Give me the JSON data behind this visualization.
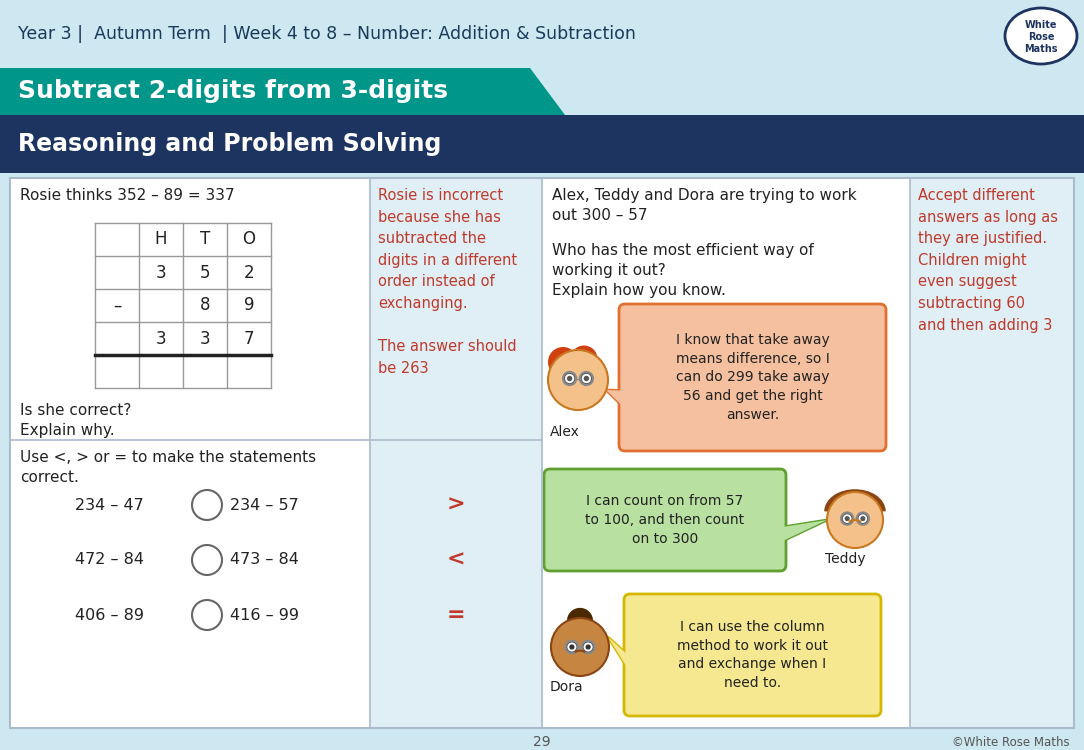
{
  "bg_color": "#cde8f0",
  "header_text": "Year 3 |  Autumn Term  | Week 4 to 8 – Number: Addition & Subtraction",
  "header_color": "#1a3a5c",
  "teal_title": "Subtract 2-digits from 3-digits",
  "teal_bg": "#00968a",
  "navy_bg": "#1d3461",
  "rps_title": "Reasoning and Problem Solving",
  "q1_text": "Rosie thinks 352 – 89 = 337",
  "q1_sub": "Is she correct?\nExplain why.",
  "ans1_color": "#c0392b",
  "ans1_text": "Rosie is incorrect\nbecause she has\nsubtracted the\ndigits in a different\norder instead of\nexchanging.\n\nThe answer should\nbe 263",
  "q2_text": "Use <, > or = to make the statements\ncorrect.",
  "ans2_color": "#c0392b",
  "q3_text_1": "Alex, Teddy and Dora are trying to work\nout 300 – 57",
  "q3_text_2": "Who has the most efficient way of\nworking it out?\nExplain how you know.",
  "ans3_color": "#c0392b",
  "ans3_text": "Accept different\nanswers as long as\nthey are justified.\nChildren might\neven suggest\nsubtracting 60\nand then adding 3",
  "alex_bubble": "I know that take away\nmeans difference, so I\ncan do 299 take away\n56 and get the right\nanswer.",
  "alex_bubble_color": "#f5c0a0",
  "alex_bubble_edge": "#e07030",
  "teddy_bubble": "I can count on from 57\nto 100, and then count\non to 300",
  "teddy_bubble_color": "#b8e0a0",
  "teddy_bubble_edge": "#60a030",
  "dora_bubble": "I can use the column\nmethod to work it out\nand exchange when I\nneed to.",
  "dora_bubble_color": "#f5e890",
  "dora_bubble_edge": "#d4b800",
  "answer_bg": "#e0eff5",
  "text_color": "#222222",
  "grid_color": "#aabbcc",
  "page_num": "29"
}
